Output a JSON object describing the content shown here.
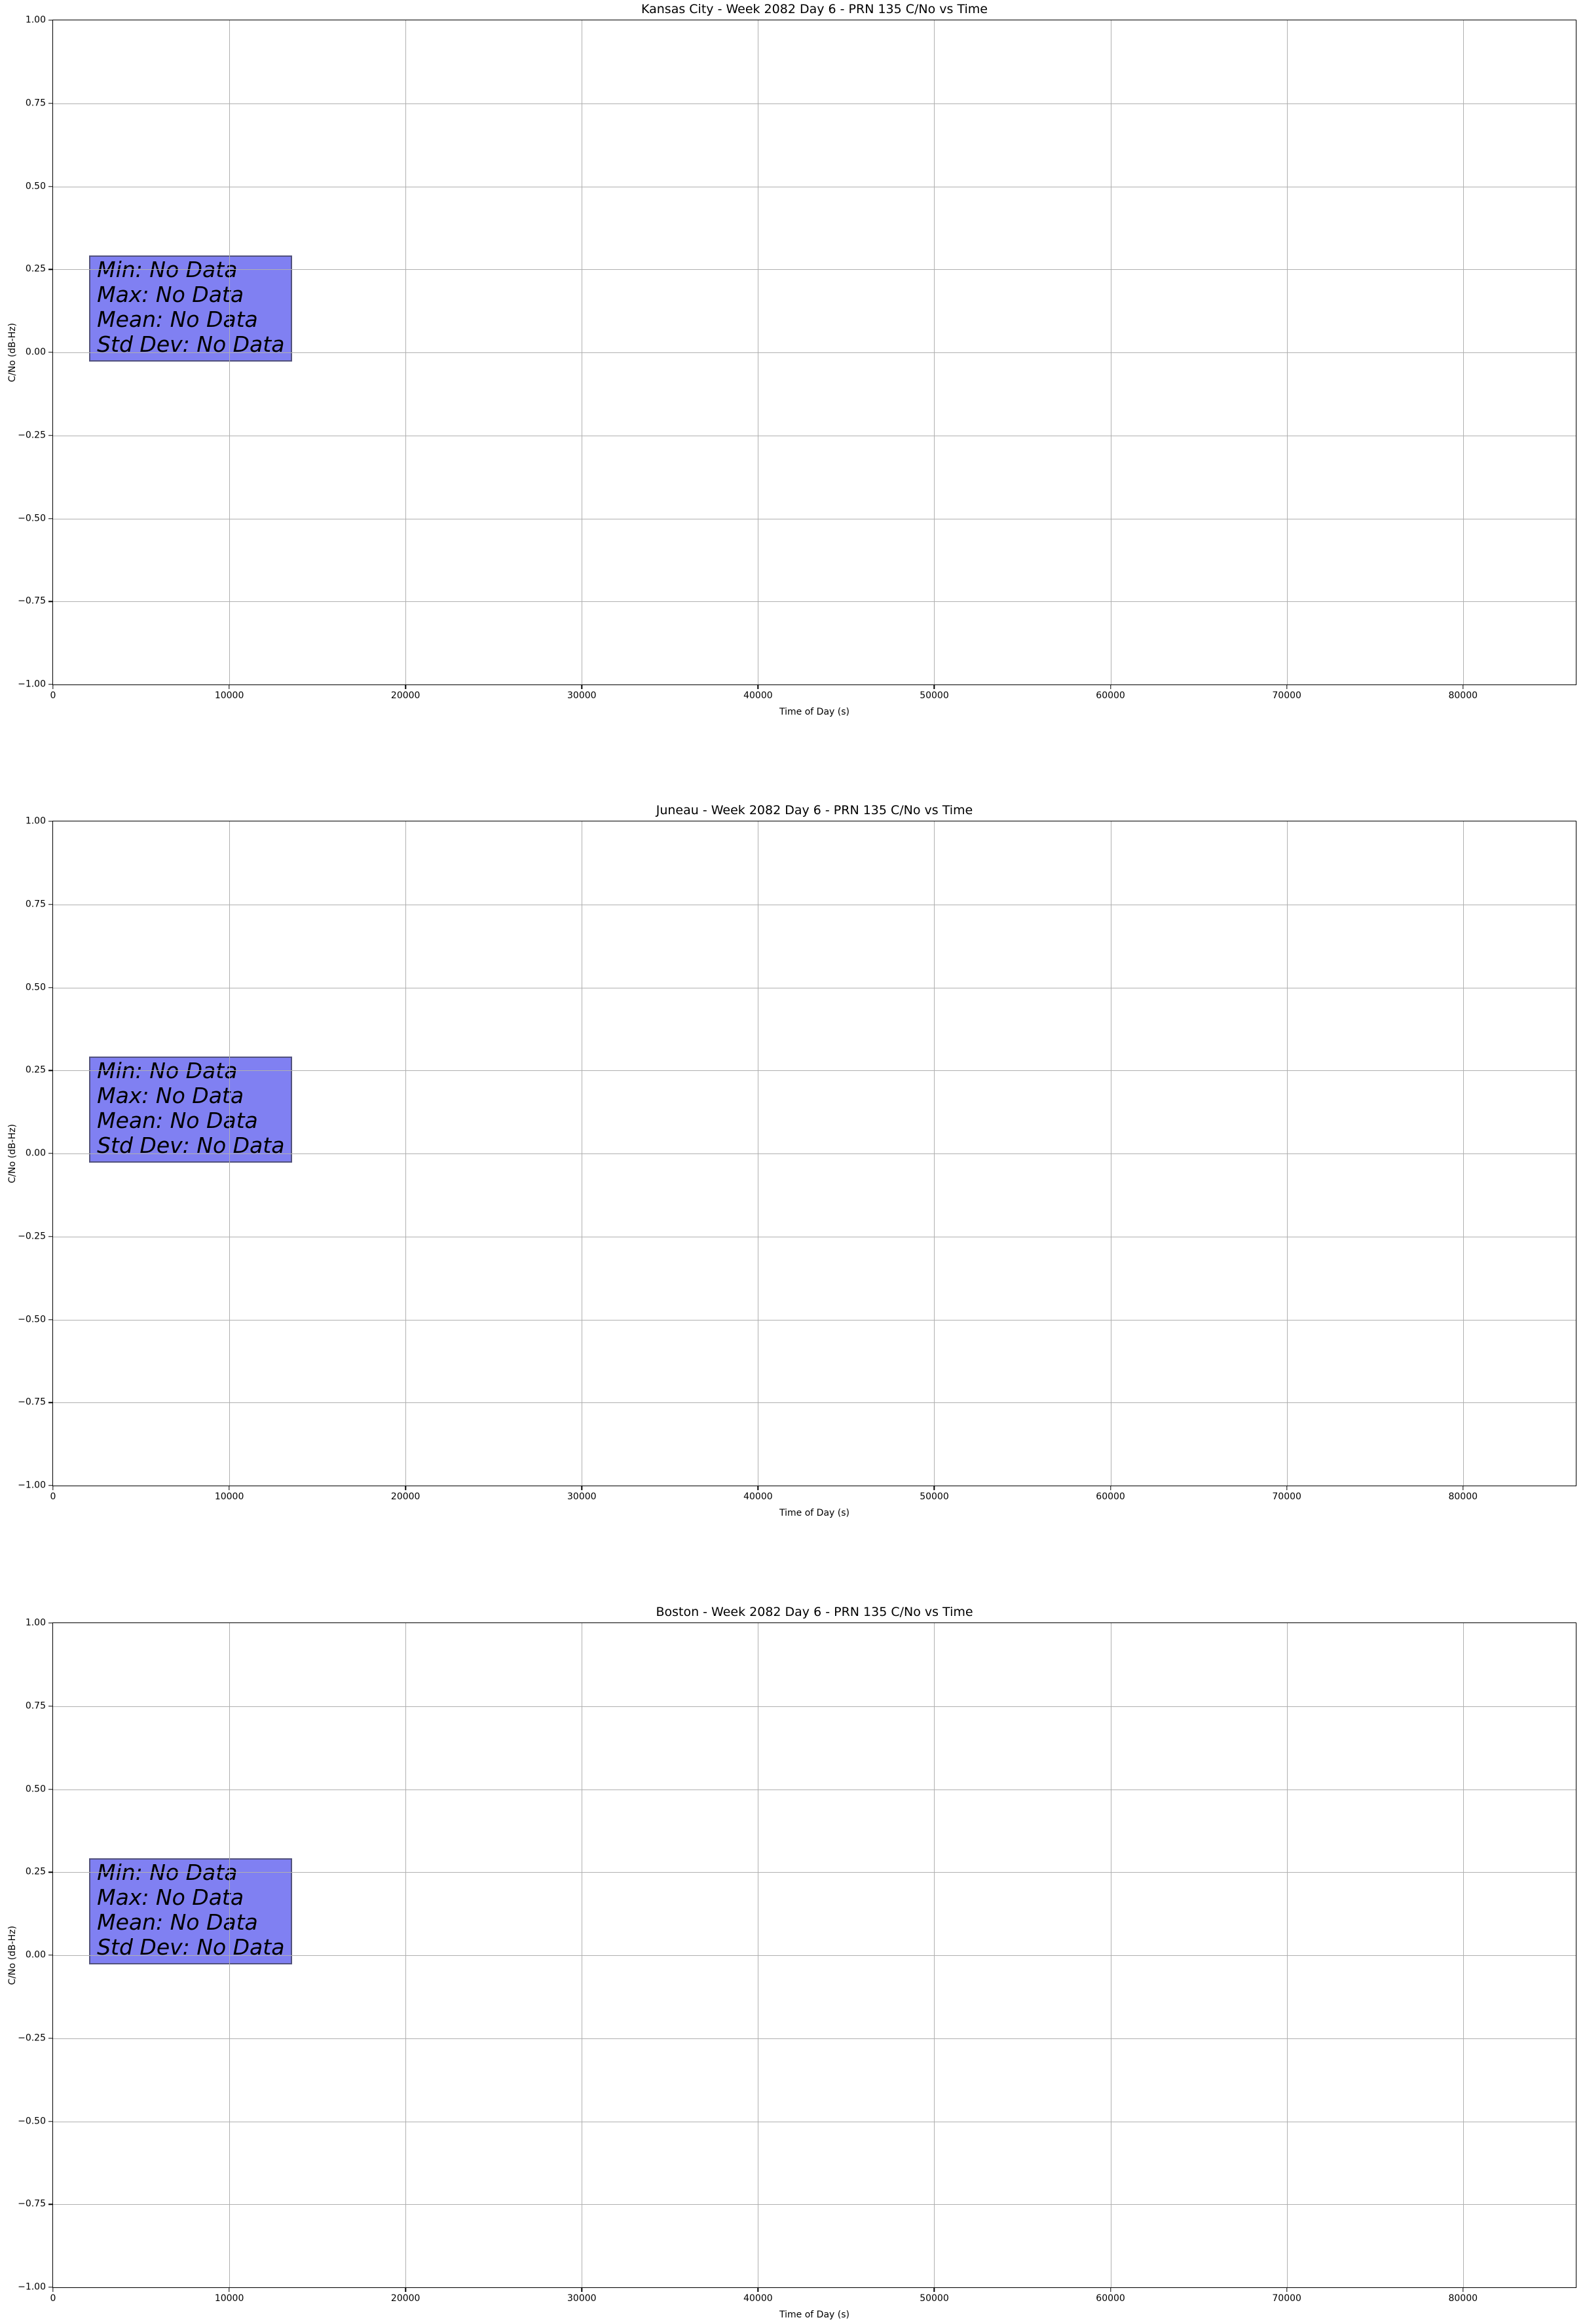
{
  "colors": {
    "grid": "#b0b0b0",
    "spine": "#000000",
    "annotation_fill": "#8080f2",
    "annotation_border": "#52527d",
    "annotation_text": "#000000"
  },
  "axes": {
    "x": {
      "label": "Time of Day (s)",
      "min": 0,
      "max": 86400,
      "ticks": [
        {
          "v": 0,
          "label": "0"
        },
        {
          "v": 10000,
          "label": "10000"
        },
        {
          "v": 20000,
          "label": "20000"
        },
        {
          "v": 30000,
          "label": "30000"
        },
        {
          "v": 40000,
          "label": "40000"
        },
        {
          "v": 50000,
          "label": "50000"
        },
        {
          "v": 60000,
          "label": "60000"
        },
        {
          "v": 70000,
          "label": "70000"
        },
        {
          "v": 80000,
          "label": "80000"
        }
      ]
    },
    "y": {
      "label": "C/No (dB-Hz)",
      "min": -1.0,
      "max": 1.0,
      "ticks": [
        {
          "v": 1.0,
          "label": "1.00"
        },
        {
          "v": 0.75,
          "label": "0.75"
        },
        {
          "v": 0.5,
          "label": "0.50"
        },
        {
          "v": 0.25,
          "label": "0.25"
        },
        {
          "v": 0.0,
          "label": "0.00"
        },
        {
          "v": -0.25,
          "label": "−0.25"
        },
        {
          "v": -0.5,
          "label": "−0.50"
        },
        {
          "v": -0.75,
          "label": "−0.75"
        },
        {
          "v": -1.0,
          "label": "−1.00"
        }
      ]
    }
  },
  "charts": [
    {
      "slug": "kansas-city",
      "title": "Kansas City - Week 2082 Day 6 - PRN 135 C/No vs Time",
      "stats": [
        "Min: No Data",
        "Max: No Data",
        "Mean: No Data",
        "Std Dev: No Data"
      ]
    },
    {
      "slug": "juneau",
      "title": "Juneau - Week 2082 Day 6 - PRN 135 C/No vs Time",
      "stats": [
        "Min: No Data",
        "Max: No Data",
        "Mean: No Data",
        "Std Dev: No Data"
      ]
    },
    {
      "slug": "boston",
      "title": "Boston - Week 2082 Day 6 - PRN 135 C/No vs Time",
      "stats": [
        "Min: No Data",
        "Max: No Data",
        "Mean: No Data",
        "Std Dev: No Data"
      ]
    }
  ],
  "chart_data": [
    {
      "type": "line",
      "title": "Kansas City - Week 2082 Day 6 - PRN 135 C/No vs Time",
      "xlabel": "Time of Day (s)",
      "ylabel": "C/No (dB-Hz)",
      "xlim": [
        0,
        86400
      ],
      "ylim": [
        -1.0,
        1.0
      ],
      "xticks": [
        0,
        10000,
        20000,
        30000,
        40000,
        50000,
        60000,
        70000,
        80000
      ],
      "yticks": [
        -1.0,
        -0.75,
        -0.5,
        -0.25,
        0.0,
        0.25,
        0.5,
        0.75,
        1.0
      ],
      "grid": true,
      "legend": false,
      "series": [],
      "no_data": true,
      "annotation_box": {
        "lines": [
          "Min: No Data",
          "Max: No Data",
          "Mean: No Data",
          "Std Dev: No Data"
        ]
      }
    },
    {
      "type": "line",
      "title": "Juneau - Week 2082 Day 6 - PRN 135 C/No vs Time",
      "xlabel": "Time of Day (s)",
      "ylabel": "C/No (dB-Hz)",
      "xlim": [
        0,
        86400
      ],
      "ylim": [
        -1.0,
        1.0
      ],
      "xticks": [
        0,
        10000,
        20000,
        30000,
        40000,
        50000,
        60000,
        70000,
        80000
      ],
      "yticks": [
        -1.0,
        -0.75,
        -0.5,
        -0.25,
        0.0,
        0.25,
        0.5,
        0.75,
        1.0
      ],
      "grid": true,
      "legend": false,
      "series": [],
      "no_data": true,
      "annotation_box": {
        "lines": [
          "Min: No Data",
          "Max: No Data",
          "Mean: No Data",
          "Std Dev: No Data"
        ]
      }
    },
    {
      "type": "line",
      "title": "Boston - Week 2082 Day 6 - PRN 135 C/No vs Time",
      "xlabel": "Time of Day (s)",
      "ylabel": "C/No (dB-Hz)",
      "xlim": [
        0,
        86400
      ],
      "ylim": [
        -1.0,
        1.0
      ],
      "xticks": [
        0,
        10000,
        20000,
        30000,
        40000,
        50000,
        60000,
        70000,
        80000
      ],
      "yticks": [
        -1.0,
        -0.75,
        -0.5,
        -0.25,
        0.0,
        0.25,
        0.5,
        0.75,
        1.0
      ],
      "grid": true,
      "legend": false,
      "series": [],
      "no_data": true,
      "annotation_box": {
        "lines": [
          "Min: No Data",
          "Max: No Data",
          "Mean: No Data",
          "Std Dev: No Data"
        ]
      }
    }
  ]
}
